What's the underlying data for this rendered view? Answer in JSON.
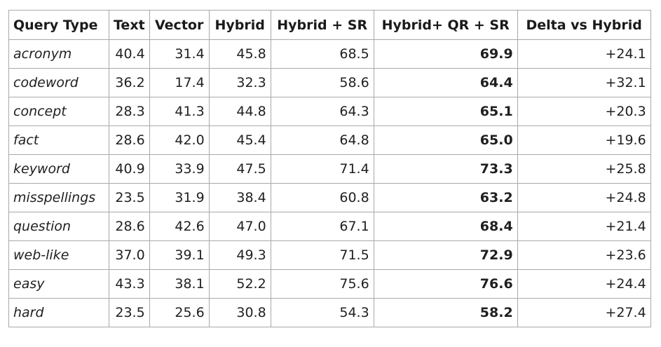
{
  "table": {
    "headers": [
      "Query Type",
      "Text",
      "Vector",
      "Hybrid",
      "Hybrid + SR",
      "Hybrid+ QR + SR",
      "Delta vs Hybrid"
    ],
    "rows": [
      [
        "acronym",
        "40.4",
        "31.4",
        "45.8",
        "68.5",
        "69.9",
        "+24.1"
      ],
      [
        "codeword",
        "36.2",
        "17.4",
        "32.3",
        "58.6",
        "64.4",
        "+32.1"
      ],
      [
        "concept",
        "28.3",
        "41.3",
        "44.8",
        "64.3",
        "65.1",
        "+20.3"
      ],
      [
        "fact",
        "28.6",
        "42.0",
        "45.4",
        "64.8",
        "65.0",
        "+19.6"
      ],
      [
        "keyword",
        "40.9",
        "33.9",
        "47.5",
        "71.4",
        "73.3",
        "+25.8"
      ],
      [
        "misspellings",
        "23.5",
        "31.9",
        "38.4",
        "60.8",
        "63.2",
        "+24.8"
      ],
      [
        "question",
        "28.6",
        "42.6",
        "47.0",
        "67.1",
        "68.4",
        "+21.4"
      ],
      [
        "web-like",
        "37.0",
        "39.1",
        "49.3",
        "71.5",
        "72.9",
        "+23.6"
      ],
      [
        "easy",
        "43.3",
        "38.1",
        "52.2",
        "75.6",
        "76.6",
        "+24.4"
      ],
      [
        "hard",
        "23.5",
        "25.6",
        "30.8",
        "54.3",
        "58.2",
        "+27.4"
      ]
    ]
  },
  "colors": {
    "border": "#a9a9a9",
    "text": "#1f1f1f",
    "background": "#ffffff"
  }
}
